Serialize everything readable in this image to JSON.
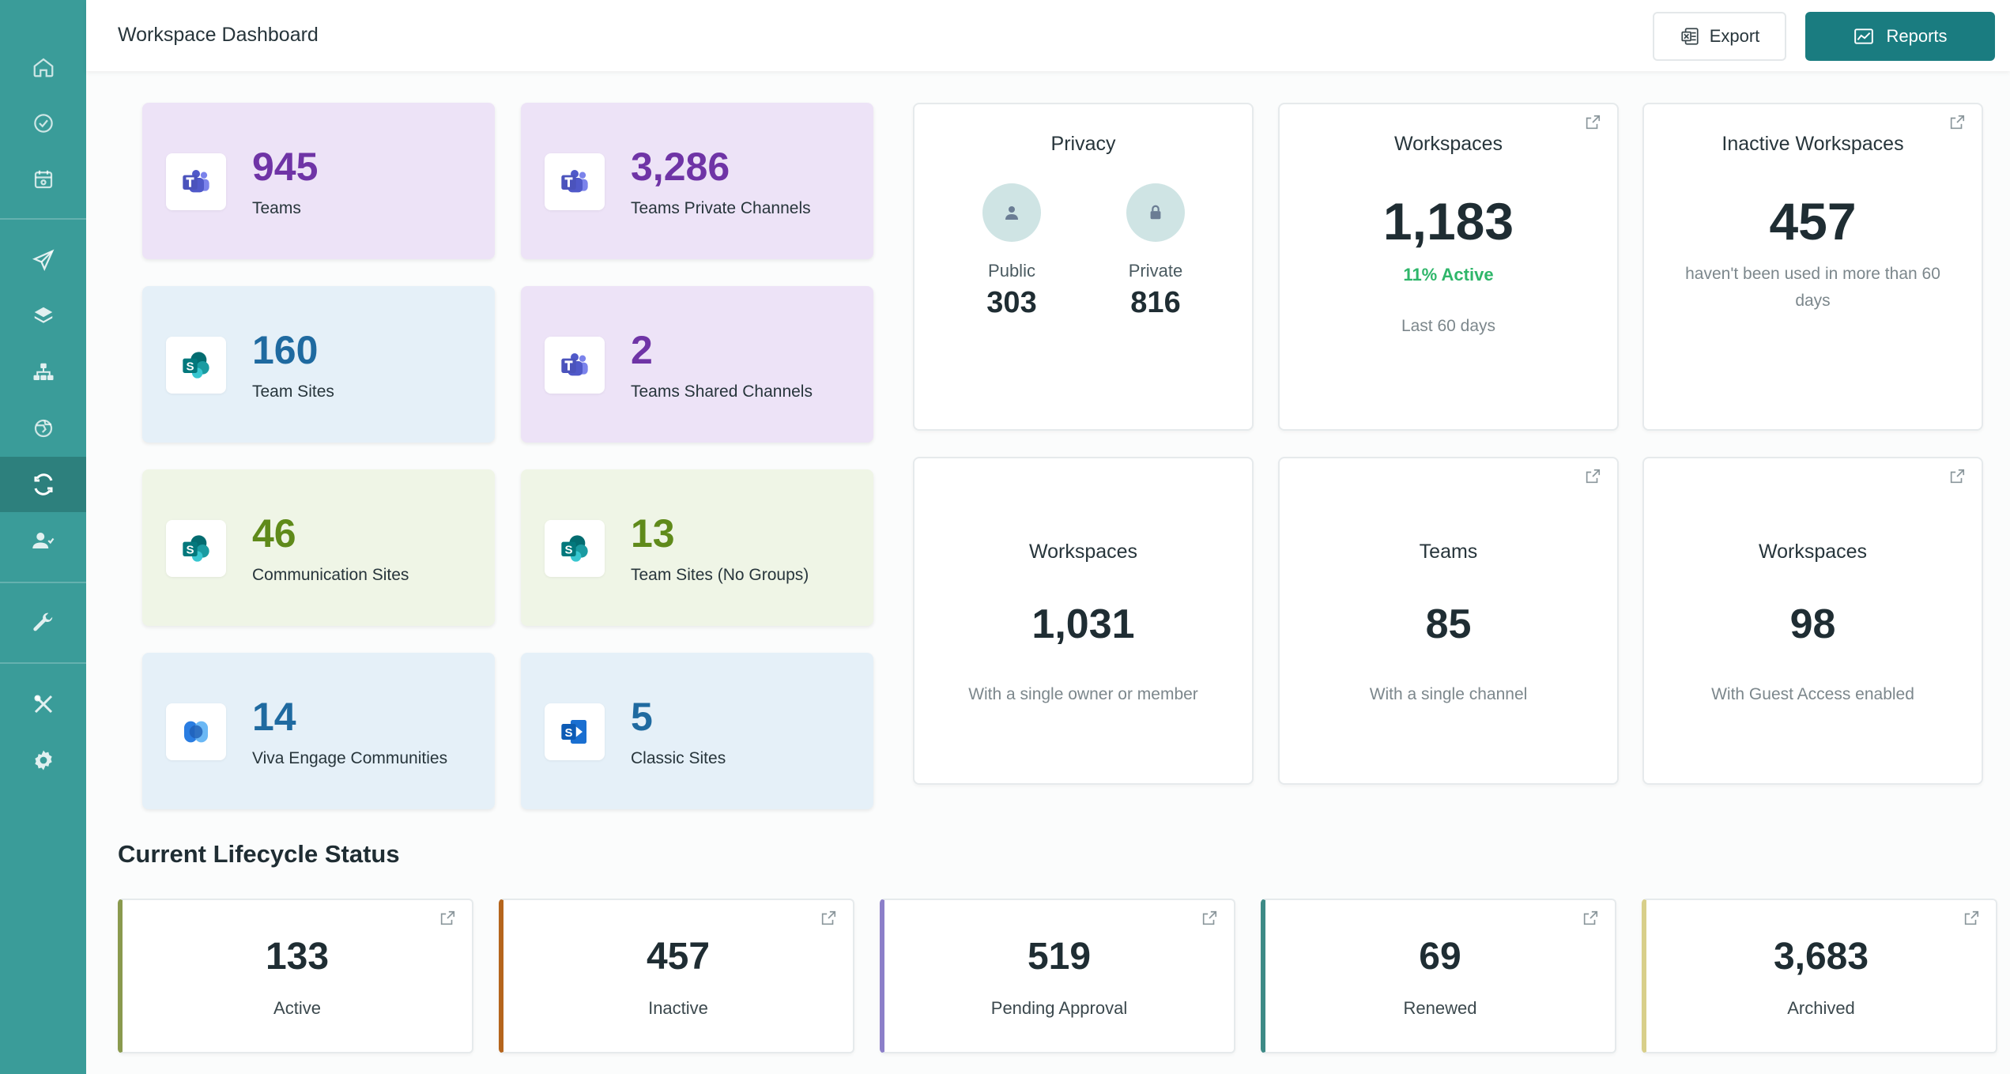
{
  "header": {
    "title": "Workspace Dashboard",
    "export_label": "Export",
    "reports_label": "Reports"
  },
  "sidebar": {
    "items": [
      {
        "name": "home-icon"
      },
      {
        "name": "badge-check-icon"
      },
      {
        "name": "calendar-icon"
      },
      {
        "name": "paper-plane-icon"
      },
      {
        "name": "layers-icon"
      },
      {
        "name": "sitemap-icon"
      },
      {
        "name": "globe-refresh-icon"
      },
      {
        "name": "sync-icon",
        "active": true
      },
      {
        "name": "users-icon"
      },
      {
        "name": "wrench-icon"
      },
      {
        "name": "tools-icon"
      },
      {
        "name": "gear-icon"
      }
    ]
  },
  "tiles": [
    {
      "value": "945",
      "label": "Teams",
      "icon": "teams-icon",
      "color": "purple"
    },
    {
      "value": "3,286",
      "label": "Teams Private Channels",
      "icon": "teams-icon",
      "color": "purple"
    },
    {
      "value": "160",
      "label": "Team Sites",
      "icon": "sharepoint-icon",
      "color": "blue"
    },
    {
      "value": "2",
      "label": "Teams Shared Channels",
      "icon": "teams-icon",
      "color": "purple"
    },
    {
      "value": "46",
      "label": "Communication Sites",
      "icon": "sharepoint-icon",
      "color": "green"
    },
    {
      "value": "13",
      "label": "Team Sites (No Groups)",
      "icon": "sharepoint-icon",
      "color": "green"
    },
    {
      "value": "14",
      "label": "Viva Engage Communities",
      "icon": "viva-engage-icon",
      "color": "blue"
    },
    {
      "value": "5",
      "label": "Classic Sites",
      "icon": "sharepoint-classic-icon",
      "color": "blue"
    }
  ],
  "privacy": {
    "title": "Privacy",
    "public_label": "Public",
    "public_value": "303",
    "private_label": "Private",
    "private_value": "816"
  },
  "workspaces_active": {
    "title": "Workspaces",
    "value": "1,183",
    "active_text": "11% Active",
    "sub": "Last 60 days"
  },
  "inactive_workspaces": {
    "title": "Inactive Workspaces",
    "value": "457",
    "sub": "haven't been used in more than 60 days"
  },
  "single_owner": {
    "title": "Workspaces",
    "value": "1,031",
    "sub": "With a single owner or member"
  },
  "single_channel": {
    "title": "Teams",
    "value": "85",
    "sub": "With a single channel"
  },
  "guest_access": {
    "title": "Workspaces",
    "value": "98",
    "sub": "With Guest Access enabled"
  },
  "lifecycle": {
    "title": "Current Lifecycle Status",
    "items": [
      {
        "value": "133",
        "label": "Active",
        "color": "#8a9a4e"
      },
      {
        "value": "457",
        "label": "Inactive",
        "color": "#b5651d"
      },
      {
        "value": "519",
        "label": "Pending Approval",
        "color": "#8c7fc9"
      },
      {
        "value": "69",
        "label": "Renewed",
        "color": "#3d8a86"
      },
      {
        "value": "3,683",
        "label": "Archived",
        "color": "#d8cf8a"
      }
    ]
  },
  "colors": {
    "sidebar": "#3a9c99",
    "sidebar_active": "#2d807d",
    "primary_button": "#1a7c80",
    "active_green": "#2fb66a"
  }
}
